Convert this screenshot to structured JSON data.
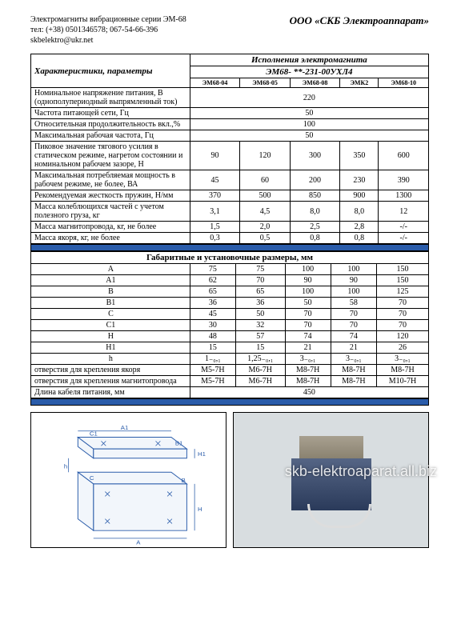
{
  "header": {
    "series": "Электромагниты вибрационные серии ЭМ-68",
    "phone": "тел: (+38) 0501346578; 067-54-66-396",
    "email": "skbelektro@ukr.net",
    "company": "ООО «СКБ Электроаппарат»"
  },
  "table1": {
    "param_header": "Характеристики, параметры",
    "execution_header": "Исполнения электромагнита",
    "model_header": "ЭМ68- **-231-00УХЛ4",
    "columns": [
      "ЭМ68-04",
      "ЭМ68-05",
      "ЭМ68-08",
      "ЭМК2",
      "ЭМ68-10"
    ],
    "rows": [
      {
        "label": "Номинальное напряжение питания, В (однополупериодный выпрямленный ток)",
        "vals": [
          "220"
        ],
        "span": 5
      },
      {
        "label": "Частота питающей сети, Гц",
        "vals": [
          "50"
        ],
        "span": 5
      },
      {
        "label": "Относительная продолжительность вкл.,%",
        "vals": [
          "100"
        ],
        "span": 5
      },
      {
        "label": "Максимальная рабочая частота, Гц",
        "vals": [
          "50"
        ],
        "span": 5
      },
      {
        "label": "Пиковое значение тягового усилия в статическом режиме, нагретом состоянии и номинальном рабочем зазоре, Н",
        "vals": [
          "90",
          "120",
          "300",
          "350",
          "600"
        ]
      },
      {
        "label": "Максимальная потребляемая мощность в рабочем режиме, не более, ВА",
        "vals": [
          "45",
          "60",
          "200",
          "230",
          "390"
        ]
      },
      {
        "label": "Рекомендуемая жесткость пружин, Н/мм",
        "vals": [
          "370",
          "500",
          "850",
          "900",
          "1300"
        ]
      },
      {
        "label": "Масса колеблющихся частей с учетом полезного груза, кг",
        "vals": [
          "3,1",
          "4,5",
          "8,0",
          "8,0",
          "12"
        ]
      },
      {
        "label": "Масса магнитопровода, кг, не более",
        "vals": [
          "1,5",
          "2,0",
          "2,5",
          "2,8",
          "-/-"
        ]
      },
      {
        "label": "Масса якоря, кг, не более",
        "vals": [
          "0,3",
          "0,5",
          "0,8",
          "0,8",
          "-/-"
        ]
      }
    ]
  },
  "table2": {
    "title": "Габаритные и установочные размеры, мм",
    "rows": [
      {
        "label": "А",
        "vals": [
          "75",
          "75",
          "100",
          "100",
          "150"
        ]
      },
      {
        "label": "А1",
        "vals": [
          "62",
          "70",
          "90",
          "90",
          "150"
        ]
      },
      {
        "label": "В",
        "vals": [
          "65",
          "65",
          "100",
          "100",
          "125"
        ]
      },
      {
        "label": "В1",
        "vals": [
          "36",
          "36",
          "50",
          "58",
          "70"
        ]
      },
      {
        "label": "С",
        "vals": [
          "45",
          "50",
          "70",
          "70",
          "70"
        ]
      },
      {
        "label": "С1",
        "vals": [
          "30",
          "32",
          "70",
          "70",
          "70"
        ]
      },
      {
        "label": "Н",
        "vals": [
          "48",
          "57",
          "74",
          "74",
          "120"
        ]
      },
      {
        "label": "Н1",
        "vals": [
          "15",
          "15",
          "21",
          "21",
          "26"
        ]
      },
      {
        "label": "h",
        "vals": [
          "1₋₀,₁",
          "1,25₋₀,₁",
          "3₋₀,₁",
          "3₋₀,₁",
          "3₋₀,₁"
        ]
      },
      {
        "label": "отверстия для крепления якоря",
        "vals": [
          "М5-7Н",
          "М6-7Н",
          "М8-7Н",
          "М8-7Н",
          "М8-7Н"
        ]
      },
      {
        "label": "отверстия для крепления магнитопровода",
        "vals": [
          "М5-7Н",
          "М6-7Н",
          "М8-7Н",
          "М8-7Н",
          "М10-7Н"
        ]
      },
      {
        "label": "Длина кабеля питания, мм",
        "vals": [
          "450"
        ],
        "span": 5
      }
    ]
  },
  "diagram_labels": {
    "A": "A",
    "A1": "A1",
    "B": "B",
    "B1": "B1",
    "C": "C",
    "C1": "C1",
    "H": "H",
    "H1": "H1",
    "h": "h"
  },
  "watermark": "skb-elektroaparat.all.biz",
  "styling": {
    "page_bg": "#ffffff",
    "outer_bg": "#b0b0b0",
    "blue_bar_color": "#2a5caa",
    "border_color": "#000000",
    "diagram_line_color": "#2a5caa",
    "font_family": "Times New Roman",
    "base_font_size": 10,
    "header_company_size": 13,
    "table_width_pct": 100,
    "param_col_width_pct": 40
  }
}
